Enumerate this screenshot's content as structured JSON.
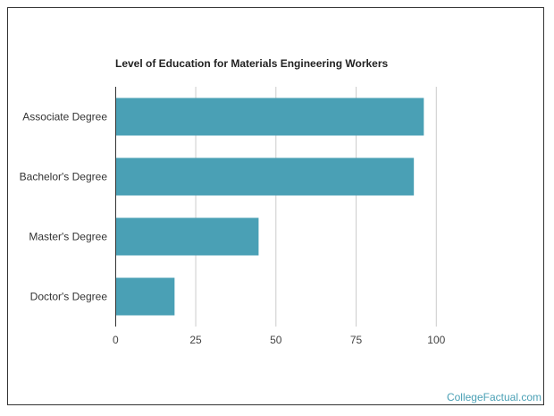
{
  "chart_data": {
    "type": "bar",
    "orientation": "horizontal",
    "title": "Level of Education for Materials Engineering Workers",
    "categories": [
      "Associate Degree",
      "Bachelor's Degree",
      "Master's Degree",
      "Doctor's Degree"
    ],
    "values": [
      96.1,
      93.0,
      44.6,
      18.4
    ],
    "xlim": [
      0,
      100
    ],
    "xticks": [
      "0",
      "25",
      "50",
      "75",
      "100"
    ],
    "grid": true,
    "bar_color": "#4aa0b5",
    "xlabel": "",
    "ylabel": ""
  },
  "credit": "CollegeFactual.com"
}
